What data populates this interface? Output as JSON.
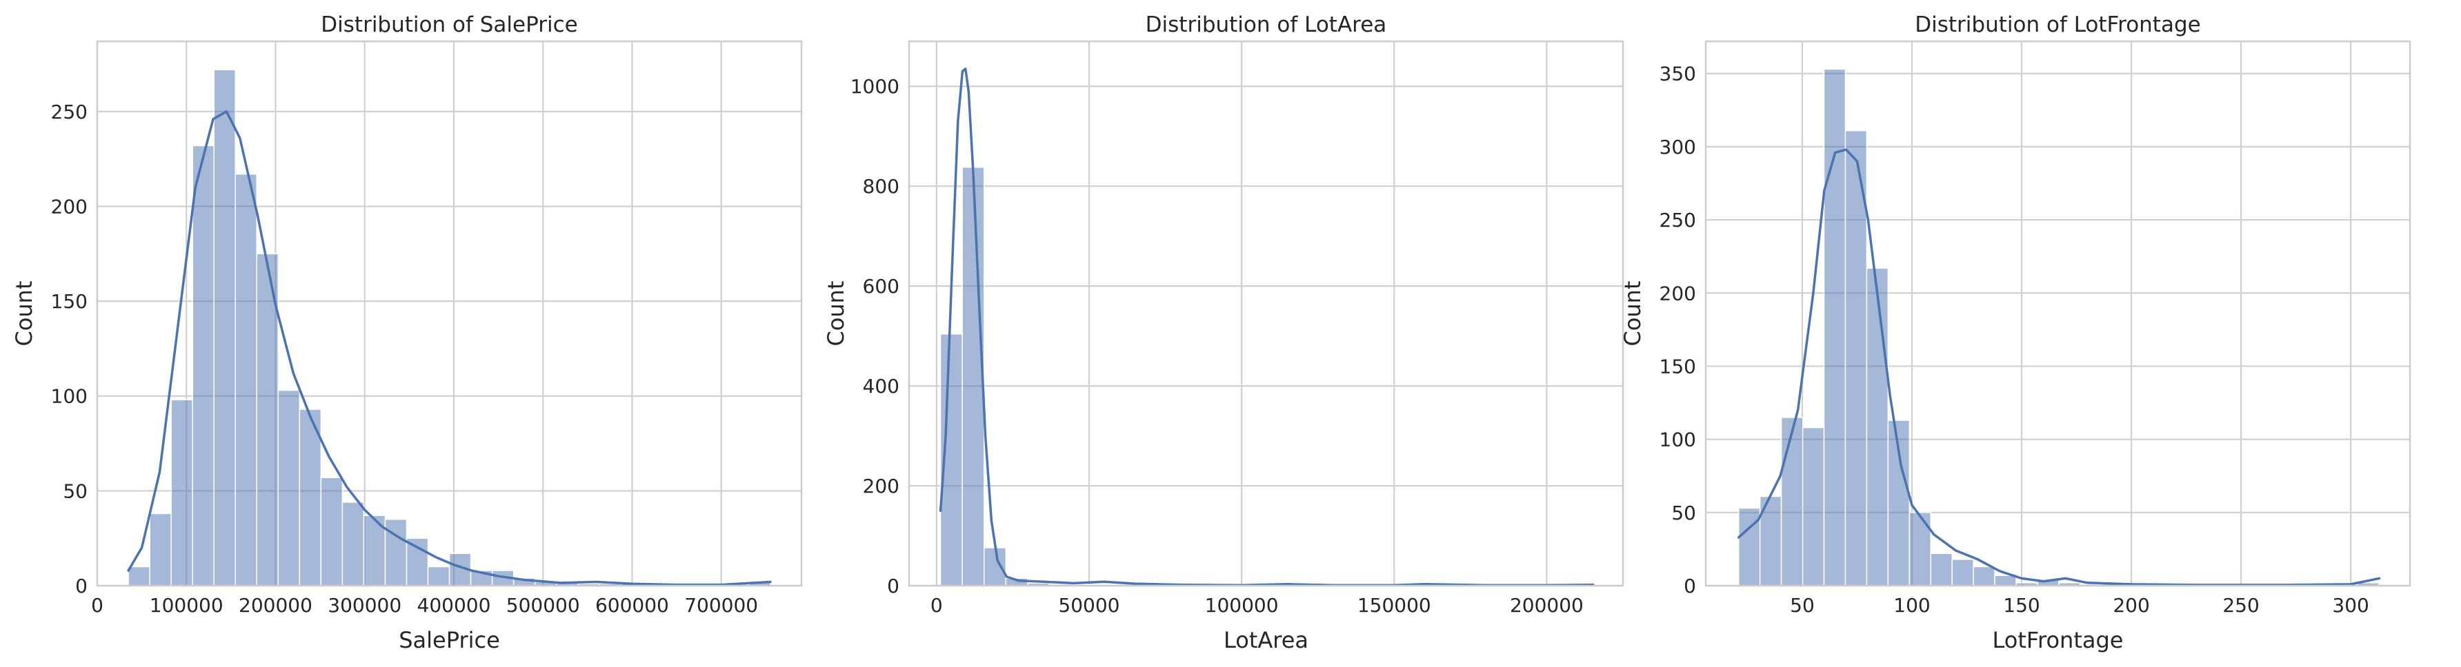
{
  "chart_data": [
    {
      "type": "histogram",
      "title": "Distribution of SalePrice",
      "xlabel": "SalePrice",
      "ylabel": "Count",
      "xlim": [
        0,
        790000
      ],
      "ylim": [
        0,
        287
      ],
      "xticks": [
        0,
        100000,
        200000,
        300000,
        400000,
        500000,
        600000,
        700000
      ],
      "xtick_labels": [
        "0",
        "100000",
        "200000",
        "300000",
        "400000",
        "500000",
        "600000",
        "700000"
      ],
      "yticks": [
        0,
        50,
        100,
        150,
        200,
        250
      ],
      "ytick_labels": [
        "0",
        "50",
        "100",
        "150",
        "200",
        "250"
      ],
      "grid": true,
      "kde": true,
      "bin_start": 34900,
      "bin_width": 24010,
      "counts": [
        10,
        38,
        98,
        232,
        272,
        217,
        175,
        103,
        93,
        57,
        44,
        37,
        35,
        25,
        10,
        17,
        8,
        8,
        4,
        2,
        2,
        1,
        1,
        1,
        1,
        0,
        0,
        0,
        0,
        2
      ],
      "kde_points": [
        [
          34900,
          8
        ],
        [
          50000,
          20
        ],
        [
          70000,
          60
        ],
        [
          90000,
          135
        ],
        [
          110000,
          210
        ],
        [
          130000,
          246
        ],
        [
          145000,
          250
        ],
        [
          160000,
          236
        ],
        [
          180000,
          195
        ],
        [
          200000,
          148
        ],
        [
          220000,
          112
        ],
        [
          240000,
          88
        ],
        [
          260000,
          68
        ],
        [
          280000,
          52
        ],
        [
          300000,
          40
        ],
        [
          320000,
          31
        ],
        [
          340000,
          25
        ],
        [
          360000,
          20
        ],
        [
          380000,
          15
        ],
        [
          400000,
          11
        ],
        [
          420000,
          8
        ],
        [
          450000,
          5
        ],
        [
          480000,
          3
        ],
        [
          520000,
          1.5
        ],
        [
          560000,
          2
        ],
        [
          600000,
          1
        ],
        [
          650000,
          0.5
        ],
        [
          700000,
          0.5
        ],
        [
          755000,
          2
        ]
      ],
      "color": "#4c72b0"
    },
    {
      "type": "histogram",
      "title": "Distribution of LotArea",
      "xlabel": "LotArea",
      "ylabel": "Count",
      "xlim": [
        -9000,
        225000
      ],
      "ylim": [
        0,
        1090
      ],
      "xticks": [
        0,
        50000,
        100000,
        150000,
        200000
      ],
      "xtick_labels": [
        "0",
        "50000",
        "100000",
        "150000",
        "200000"
      ],
      "yticks": [
        0,
        200,
        400,
        600,
        800,
        1000
      ],
      "ytick_labels": [
        "0",
        "200",
        "400",
        "600",
        "800",
        "1000"
      ],
      "grid": true,
      "kde": true,
      "bin_start": 1300,
      "bin_width": 7142,
      "counts": [
        504,
        838,
        76,
        15,
        5,
        3,
        2,
        2,
        0,
        0,
        0,
        0,
        0,
        0,
        0,
        1,
        0,
        0,
        0,
        0,
        0,
        0,
        1,
        0,
        0,
        0,
        0,
        0,
        0,
        1
      ],
      "kde_points": [
        [
          1300,
          150
        ],
        [
          3000,
          300
        ],
        [
          5000,
          620
        ],
        [
          7000,
          930
        ],
        [
          8500,
          1030
        ],
        [
          9500,
          1035
        ],
        [
          10500,
          990
        ],
        [
          12000,
          830
        ],
        [
          14000,
          560
        ],
        [
          16000,
          300
        ],
        [
          18000,
          130
        ],
        [
          20000,
          50
        ],
        [
          23000,
          18
        ],
        [
          27000,
          10
        ],
        [
          35000,
          8
        ],
        [
          45000,
          5
        ],
        [
          55000,
          8
        ],
        [
          65000,
          4
        ],
        [
          80000,
          2
        ],
        [
          100000,
          1
        ],
        [
          115000,
          3
        ],
        [
          130000,
          1
        ],
        [
          150000,
          1
        ],
        [
          160000,
          3
        ],
        [
          180000,
          1
        ],
        [
          200000,
          1
        ],
        [
          215245,
          2
        ]
      ],
      "color": "#4c72b0"
    },
    {
      "type": "histogram",
      "title": "Distribution of LotFrontage",
      "xlabel": "LotFrontage",
      "ylabel": "Count",
      "xlim": [
        6,
        327
      ],
      "ylim": [
        0,
        372
      ],
      "xticks": [
        50,
        100,
        150,
        200,
        250,
        300
      ],
      "xtick_labels": [
        "50",
        "100",
        "150",
        "200",
        "250",
        "300"
      ],
      "yticks": [
        0,
        50,
        100,
        150,
        200,
        250,
        300,
        350
      ],
      "ytick_labels": [
        "0",
        "50",
        "100",
        "150",
        "200",
        "250",
        "300",
        "350"
      ],
      "grid": true,
      "kde": true,
      "bin_start": 21,
      "bin_width": 9.73,
      "counts": [
        53,
        61,
        115,
        108,
        353,
        311,
        217,
        113,
        50,
        22,
        18,
        13,
        7,
        2,
        4,
        2,
        1,
        1,
        1,
        0,
        0,
        0,
        0,
        0,
        0,
        0,
        0,
        0,
        0,
        2
      ],
      "kde_points": [
        [
          21,
          33
        ],
        [
          30,
          45
        ],
        [
          40,
          75
        ],
        [
          48,
          120
        ],
        [
          55,
          200
        ],
        [
          60,
          270
        ],
        [
          65,
          296
        ],
        [
          70,
          298
        ],
        [
          75,
          290
        ],
        [
          80,
          250
        ],
        [
          85,
          190
        ],
        [
          90,
          130
        ],
        [
          95,
          82
        ],
        [
          100,
          55
        ],
        [
          110,
          35
        ],
        [
          120,
          24
        ],
        [
          130,
          18
        ],
        [
          140,
          10
        ],
        [
          150,
          5
        ],
        [
          160,
          3
        ],
        [
          170,
          5
        ],
        [
          180,
          2
        ],
        [
          200,
          1
        ],
        [
          230,
          0.5
        ],
        [
          270,
          0.5
        ],
        [
          300,
          1
        ],
        [
          313,
          5
        ]
      ],
      "color": "#4c72b0"
    }
  ]
}
